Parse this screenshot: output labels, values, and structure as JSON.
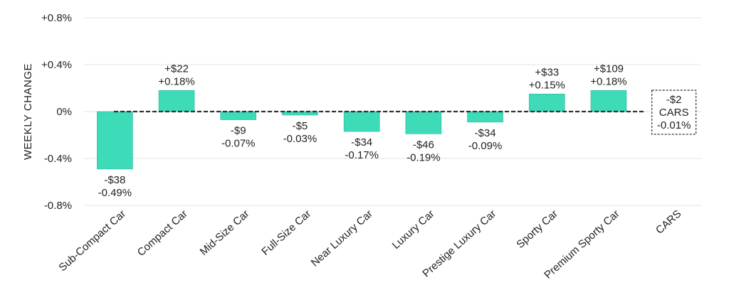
{
  "chart_data": {
    "type": "bar",
    "ylabel": "WEEKLY CHANGE",
    "ylim": [
      -0.8,
      0.8
    ],
    "yticks": [
      {
        "value": 0.8,
        "label": "+0.8%"
      },
      {
        "value": 0.4,
        "label": "+0.4%"
      },
      {
        "value": 0,
        "label": "0%"
      },
      {
        "value": -0.4,
        "label": "-0.4%"
      },
      {
        "value": -0.8,
        "label": "-0.8%"
      }
    ],
    "grid": true,
    "bar_color": "#3ddbb8",
    "categories": [
      "Sub-Compact Car",
      "Compact Car",
      "Mid-Size Car",
      "Full-Size Car",
      "Near Luxury Car",
      "Luxury Car",
      "Prestige Luxury Car",
      "Sporty Car",
      "Premium Sporty Car",
      "CARS"
    ],
    "values": [
      -0.49,
      0.18,
      -0.07,
      -0.03,
      -0.17,
      -0.19,
      -0.09,
      0.15,
      0.18,
      -0.01
    ],
    "dollar_labels": [
      "-$38",
      "+$22",
      "-$9",
      "-$5",
      "-$34",
      "-$46",
      "-$34",
      "+$33",
      "+$109",
      "-$2"
    ],
    "percent_labels": [
      "-0.49%",
      "+0.18%",
      "-0.07%",
      "-0.03%",
      "-0.17%",
      "-0.19%",
      "-0.09%",
      "+0.15%",
      "+0.18%",
      "-0.01%"
    ],
    "summary": {
      "category": "CARS",
      "label": "CARS",
      "value": -0.01,
      "dollar": "-$2",
      "percent": "-0.01%"
    }
  }
}
